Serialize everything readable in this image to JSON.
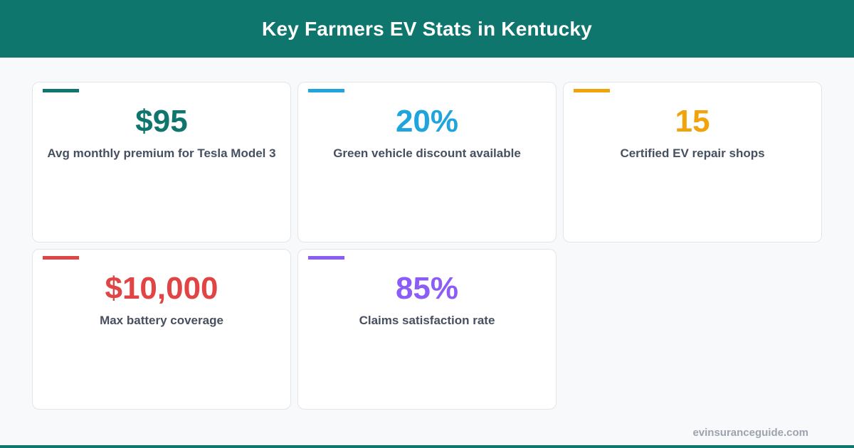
{
  "header": {
    "title": "Key Farmers EV Stats in Kentucky"
  },
  "stats": [
    {
      "value": "$95",
      "label": "Avg monthly premium for Tesla Model 3",
      "color": "#0f766e"
    },
    {
      "value": "20%",
      "label": "Green vehicle discount available",
      "color": "#1fa4dc"
    },
    {
      "value": "15",
      "label": "Certified EV repair shops",
      "color": "#f0a30a"
    },
    {
      "value": "$10,000",
      "label": "Max battery coverage",
      "color": "#e04444"
    },
    {
      "value": "85%",
      "label": "Claims satisfaction rate",
      "color": "#8b5cf6"
    }
  ],
  "footer": {
    "watermark": "evinsuranceguide.com",
    "bar_color": "#0f766e"
  }
}
